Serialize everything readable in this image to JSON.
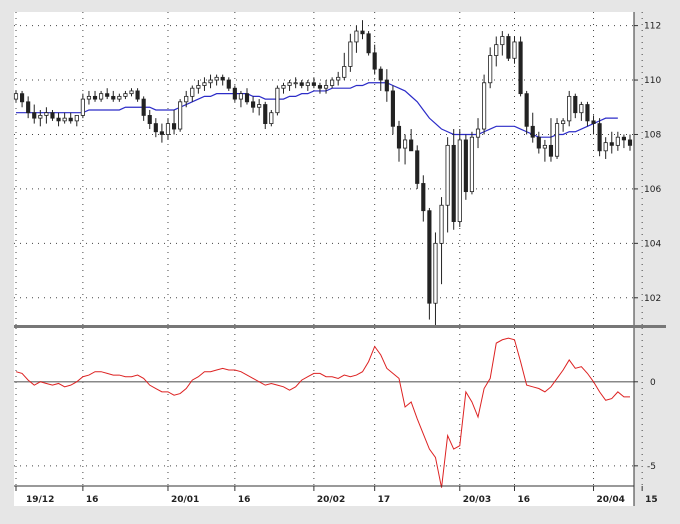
{
  "chart_data": [
    {
      "type": "candlestick",
      "panel": "price",
      "title": "",
      "ylim": [
        101,
        112.5
      ],
      "yticks": [
        "112",
        "110",
        "108",
        "106",
        "104",
        "102"
      ],
      "grid": true,
      "colors": {
        "up": "#ffffff",
        "down": "#222222",
        "wick": "#222222",
        "ma": "#2c2cc8"
      },
      "x_tick_labels": [
        "19/12",
        "16",
        "20/01",
        "16",
        "20/02",
        "17",
        "20/03",
        "16",
        "20/04",
        "15"
      ],
      "ohlc": [
        [
          109.3,
          109.6,
          109.2,
          109.5
        ],
        [
          109.5,
          109.6,
          109.0,
          109.2
        ],
        [
          109.2,
          109.4,
          108.6,
          108.8
        ],
        [
          108.8,
          109.1,
          108.4,
          108.6
        ],
        [
          108.6,
          108.9,
          108.3,
          108.7
        ],
        [
          108.7,
          109.0,
          108.4,
          108.8
        ],
        [
          108.8,
          108.9,
          108.5,
          108.6
        ],
        [
          108.6,
          108.8,
          108.3,
          108.5
        ],
        [
          108.5,
          108.8,
          108.4,
          108.6
        ],
        [
          108.6,
          108.8,
          108.4,
          108.5
        ],
        [
          108.5,
          108.7,
          108.3,
          108.7
        ],
        [
          108.7,
          109.5,
          108.6,
          109.3
        ],
        [
          109.3,
          109.6,
          109.1,
          109.4
        ],
        [
          109.4,
          109.6,
          109.2,
          109.3
        ],
        [
          109.3,
          109.6,
          109.2,
          109.5
        ],
        [
          109.5,
          109.7,
          109.3,
          109.4
        ],
        [
          109.4,
          109.6,
          109.2,
          109.3
        ],
        [
          109.3,
          109.5,
          109.2,
          109.4
        ],
        [
          109.4,
          109.6,
          109.3,
          109.5
        ],
        [
          109.5,
          109.7,
          109.4,
          109.6
        ],
        [
          109.6,
          109.7,
          109.2,
          109.3
        ],
        [
          109.3,
          109.4,
          108.5,
          108.7
        ],
        [
          108.7,
          108.9,
          108.2,
          108.4
        ],
        [
          108.4,
          108.6,
          107.9,
          108.1
        ],
        [
          108.1,
          108.4,
          107.7,
          108.0
        ],
        [
          108.0,
          108.6,
          107.8,
          108.4
        ],
        [
          108.4,
          108.9,
          108.0,
          108.2
        ],
        [
          108.2,
          109.3,
          108.1,
          109.2
        ],
        [
          109.2,
          109.6,
          109.0,
          109.4
        ],
        [
          109.4,
          109.8,
          109.2,
          109.7
        ],
        [
          109.7,
          110.0,
          109.5,
          109.8
        ],
        [
          109.8,
          110.1,
          109.6,
          109.9
        ],
        [
          109.9,
          110.2,
          109.7,
          110.0
        ],
        [
          110.0,
          110.2,
          109.8,
          110.1
        ],
        [
          110.1,
          110.2,
          109.8,
          110.0
        ],
        [
          110.0,
          110.1,
          109.6,
          109.7
        ],
        [
          109.7,
          109.8,
          109.2,
          109.3
        ],
        [
          109.3,
          109.6,
          109.0,
          109.5
        ],
        [
          109.5,
          109.7,
          109.1,
          109.2
        ],
        [
          109.2,
          109.4,
          108.8,
          109.0
        ],
        [
          109.0,
          109.3,
          108.7,
          109.1
        ],
        [
          109.1,
          109.2,
          108.2,
          108.4
        ],
        [
          108.4,
          108.9,
          108.3,
          108.8
        ],
        [
          108.8,
          109.8,
          108.7,
          109.7
        ],
        [
          109.7,
          109.9,
          109.5,
          109.8
        ],
        [
          109.8,
          110.0,
          109.6,
          109.9
        ],
        [
          109.9,
          110.1,
          109.7,
          109.9
        ],
        [
          109.9,
          110.0,
          109.7,
          109.8
        ],
        [
          109.8,
          110.0,
          109.6,
          109.9
        ],
        [
          109.9,
          110.1,
          109.7,
          109.8
        ],
        [
          109.8,
          109.9,
          109.5,
          109.7
        ],
        [
          109.7,
          110.0,
          109.5,
          109.8
        ],
        [
          109.8,
          110.1,
          109.7,
          110.0
        ],
        [
          110.0,
          110.3,
          109.8,
          110.1
        ],
        [
          110.1,
          111.0,
          110.0,
          110.5
        ],
        [
          110.5,
          111.7,
          110.3,
          111.4
        ],
        [
          111.4,
          112.0,
          111.0,
          111.8
        ],
        [
          111.8,
          112.2,
          111.5,
          111.7
        ],
        [
          111.7,
          111.8,
          110.9,
          111.0
        ],
        [
          111.0,
          111.3,
          110.2,
          110.4
        ],
        [
          110.4,
          110.5,
          109.6,
          110.0
        ],
        [
          110.0,
          110.4,
          109.2,
          109.6
        ],
        [
          109.6,
          109.8,
          108.0,
          108.3
        ],
        [
          108.3,
          108.5,
          107.0,
          107.5
        ],
        [
          107.5,
          108.0,
          106.9,
          107.8
        ],
        [
          107.8,
          108.2,
          107.5,
          107.4
        ],
        [
          107.4,
          107.6,
          106.0,
          106.2
        ],
        [
          106.2,
          106.5,
          104.8,
          105.2
        ],
        [
          105.2,
          105.3,
          101.2,
          101.8
        ],
        [
          101.8,
          104.4,
          101.0,
          104.0
        ],
        [
          104.0,
          105.7,
          102.5,
          105.4
        ],
        [
          105.4,
          107.9,
          104.4,
          107.6
        ],
        [
          107.6,
          108.2,
          104.5,
          104.8
        ],
        [
          104.8,
          108.2,
          104.6,
          107.8
        ],
        [
          107.8,
          108.0,
          105.6,
          105.9
        ],
        [
          105.9,
          108.1,
          105.8,
          107.9
        ],
        [
          107.9,
          108.6,
          107.5,
          108.2
        ],
        [
          108.2,
          110.2,
          108.0,
          109.9
        ],
        [
          109.9,
          111.2,
          109.7,
          110.9
        ],
        [
          110.9,
          111.6,
          110.5,
          111.3
        ],
        [
          111.3,
          111.8,
          110.9,
          111.6
        ],
        [
          111.6,
          111.7,
          110.7,
          110.8
        ],
        [
          110.8,
          111.6,
          110.6,
          111.4
        ],
        [
          111.4,
          111.6,
          109.4,
          109.5
        ],
        [
          109.5,
          109.6,
          108.0,
          108.3
        ],
        [
          108.3,
          108.8,
          107.7,
          107.9
        ],
        [
          107.9,
          108.1,
          107.3,
          107.5
        ],
        [
          107.5,
          107.8,
          107.0,
          107.6
        ],
        [
          107.6,
          108.6,
          107.0,
          107.2
        ],
        [
          107.2,
          108.6,
          107.1,
          108.4
        ],
        [
          108.4,
          108.6,
          108.1,
          108.5
        ],
        [
          108.5,
          109.6,
          108.3,
          109.4
        ],
        [
          109.4,
          109.5,
          108.6,
          108.8
        ],
        [
          108.8,
          109.2,
          108.5,
          109.1
        ],
        [
          109.1,
          109.2,
          108.3,
          108.5
        ],
        [
          108.5,
          108.7,
          108.0,
          108.4
        ],
        [
          108.4,
          108.6,
          107.2,
          107.4
        ],
        [
          107.4,
          107.9,
          107.1,
          107.7
        ],
        [
          107.7,
          108.1,
          107.3,
          107.6
        ],
        [
          107.6,
          108.1,
          107.4,
          107.9
        ],
        [
          107.9,
          108.0,
          107.5,
          107.8
        ],
        [
          107.8,
          108.0,
          107.4,
          107.6
        ]
      ],
      "ma": [
        108.8,
        108.8,
        108.8,
        108.8,
        108.8,
        108.8,
        108.8,
        108.8,
        108.8,
        108.8,
        108.8,
        108.8,
        108.9,
        108.9,
        108.9,
        108.9,
        108.9,
        108.9,
        109.0,
        109.0,
        109.0,
        109.0,
        109.0,
        108.9,
        108.9,
        108.9,
        108.9,
        109.0,
        109.1,
        109.2,
        109.3,
        109.4,
        109.4,
        109.5,
        109.5,
        109.5,
        109.5,
        109.5,
        109.5,
        109.4,
        109.4,
        109.3,
        109.3,
        109.3,
        109.3,
        109.4,
        109.4,
        109.5,
        109.5,
        109.6,
        109.6,
        109.6,
        109.7,
        109.7,
        109.7,
        109.7,
        109.8,
        109.8,
        109.9,
        109.9,
        109.9,
        109.9,
        109.8,
        109.7,
        109.6,
        109.4,
        109.2,
        108.9,
        108.6,
        108.4,
        108.2,
        108.1,
        108.0,
        108.0,
        108.0,
        108.0,
        108.0,
        108.1,
        108.2,
        108.3,
        108.3,
        108.3,
        108.3,
        108.2,
        108.1,
        108.0,
        107.9,
        107.9,
        107.9,
        108.0,
        108.0,
        108.1,
        108.1,
        108.2,
        108.3,
        108.4,
        108.5,
        108.6,
        108.6,
        108.6
      ]
    },
    {
      "type": "line",
      "panel": "oscillator",
      "title": "",
      "ylim": [
        -6.2,
        3.2
      ],
      "yticks": [
        "0",
        "-5"
      ],
      "zero_line": true,
      "grid": true,
      "colors": {
        "line": "#dd2222",
        "zero": "#888888"
      },
      "values": [
        0.6,
        0.5,
        0.1,
        -0.2,
        0.0,
        -0.1,
        -0.2,
        -0.1,
        -0.3,
        -0.2,
        0.0,
        0.3,
        0.4,
        0.6,
        0.6,
        0.5,
        0.4,
        0.4,
        0.3,
        0.3,
        0.4,
        0.2,
        -0.2,
        -0.4,
        -0.6,
        -0.6,
        -0.8,
        -0.7,
        -0.4,
        0.1,
        0.3,
        0.6,
        0.6,
        0.7,
        0.8,
        0.7,
        0.7,
        0.6,
        0.4,
        0.2,
        0.0,
        -0.2,
        -0.1,
        -0.2,
        -0.3,
        -0.5,
        -0.3,
        0.1,
        0.3,
        0.5,
        0.5,
        0.3,
        0.3,
        0.2,
        0.4,
        0.3,
        0.4,
        0.6,
        1.2,
        2.1,
        1.6,
        0.8,
        0.5,
        0.2,
        -1.5,
        -1.2,
        -2.2,
        -3.1,
        -4.0,
        -4.5,
        -6.3,
        -3.2,
        -4.0,
        -3.8,
        -0.6,
        -1.2,
        -2.1,
        -0.4,
        0.2,
        2.3,
        2.5,
        2.6,
        2.5,
        1.2,
        -0.2,
        -0.3,
        -0.4,
        -0.6,
        -0.3,
        0.2,
        0.7,
        1.3,
        0.8,
        0.9,
        0.5,
        0.0,
        -0.6,
        -1.1,
        -1.0,
        -0.6,
        -0.9,
        -0.9
      ]
    }
  ]
}
